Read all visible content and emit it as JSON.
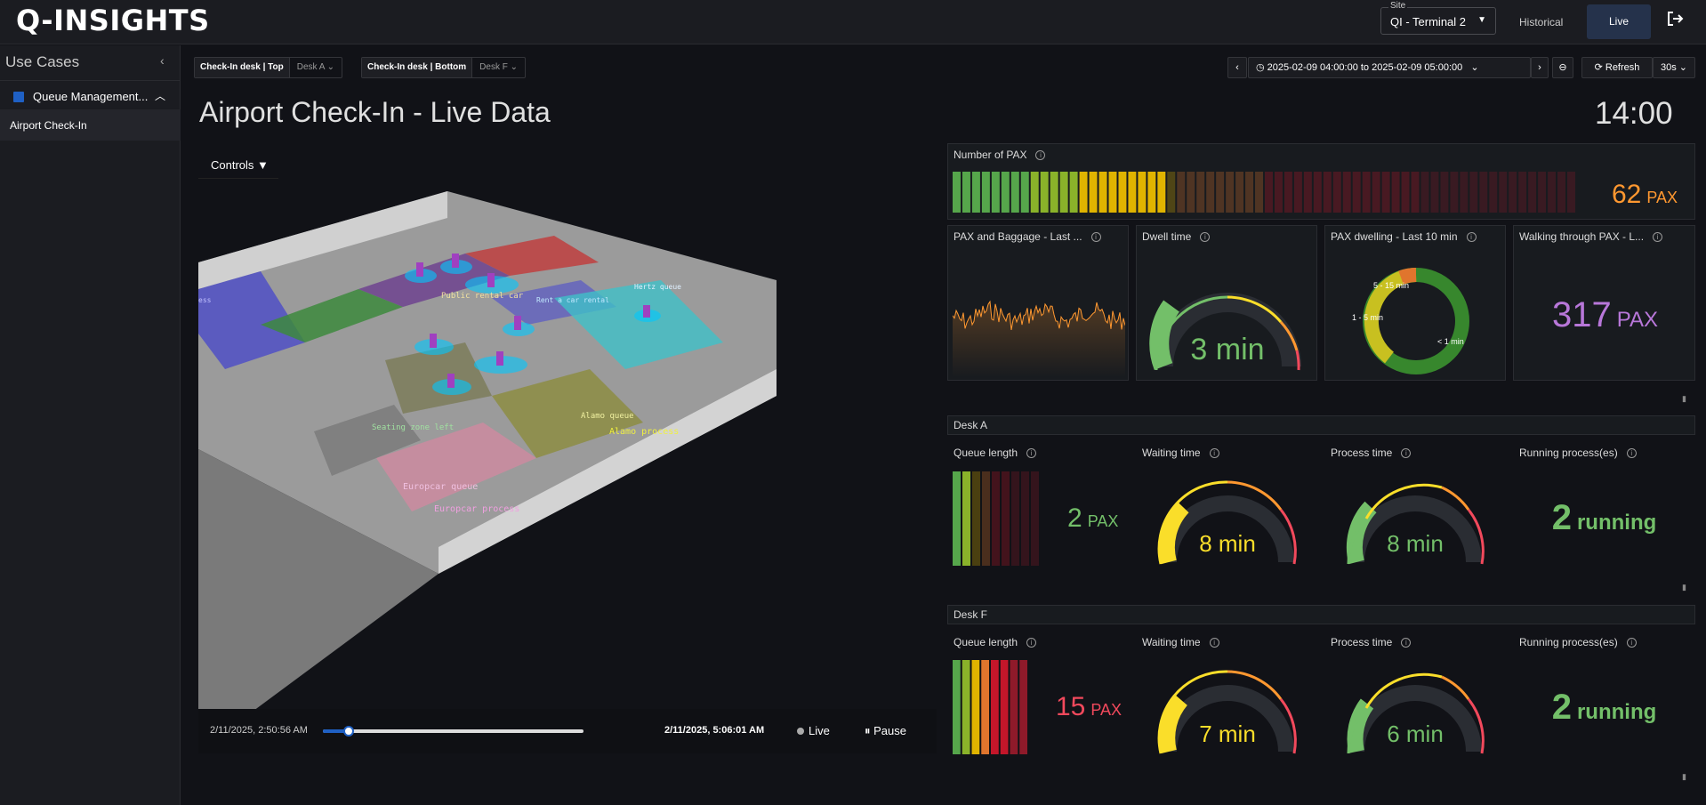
{
  "app": {
    "logo": "Q-INSIGHTS"
  },
  "header": {
    "site_label": "Site",
    "site_value": "QI - Terminal 2",
    "nav_historical": "Historical",
    "nav_live": "Live"
  },
  "sidebar": {
    "title": "Use Cases",
    "group_label": "Queue Management...",
    "item_label": "Airport Check-In"
  },
  "vars": {
    "top_label": "Check-In desk | Top",
    "top_value": "Desk A",
    "bottom_label": "Check-In desk | Bottom",
    "bottom_value": "Desk F"
  },
  "timepicker": {
    "range": "2025-02-09 04:00:00 to 2025-02-09 05:00:00",
    "refresh": "Refresh",
    "interval": "30s"
  },
  "dashboard": {
    "title": "Airport Check-In - Live Data",
    "clock": "14:00",
    "controls": "Controls ▼"
  },
  "scene_labels": [
    "Public rental car",
    "Seating zone left",
    "Europcar queue",
    "Europcar process",
    "Alamo queue",
    "Alamo process",
    "Hertz queue",
    "Rent a car rental",
    "ess"
  ],
  "player": {
    "start": "2/11/2025, 2:50:56 AM",
    "end": "2/11/2025, 5:06:01 AM",
    "progress": 0.1,
    "live": "Live",
    "pause": "Pause"
  },
  "pax": {
    "title": "Number of PAX",
    "value": "62",
    "unit": "PAX",
    "filled_fraction": 0.35
  },
  "row1": {
    "baggage_title": "PAX and Baggage - Last ...",
    "dwell_title": "Dwell time",
    "dwell_value": "3 min",
    "dwelling_title": "PAX dwelling - Last 10 min",
    "dwelling_labels": [
      "5 - 15 min",
      "1 - 5 min",
      "< 1 min"
    ],
    "walking_title": "Walking through PAX - L...",
    "walking_value": "317",
    "walking_unit": "PAX"
  },
  "deskA": {
    "header": "Desk A",
    "queue_title": "Queue length",
    "queue_value": "2",
    "queue_unit": "PAX",
    "waiting_title": "Waiting time",
    "waiting_value": "8 min",
    "process_title": "Process time",
    "process_value": "8 min",
    "running_title": "Running process(es)",
    "running_value": "2",
    "running_unit": "running"
  },
  "deskF": {
    "header": "Desk F",
    "queue_title": "Queue length",
    "queue_value": "15",
    "queue_unit": "PAX",
    "waiting_title": "Waiting time",
    "waiting_value": "7 min",
    "process_title": "Process time",
    "process_value": "6 min",
    "running_title": "Running process(es)",
    "running_value": "2",
    "running_unit": "running"
  },
  "colors": {
    "green": "#73bf69",
    "yellow": "#fade2a",
    "orange": "#ff9830",
    "red": "#f2495c",
    "purple": "#b877d9"
  }
}
